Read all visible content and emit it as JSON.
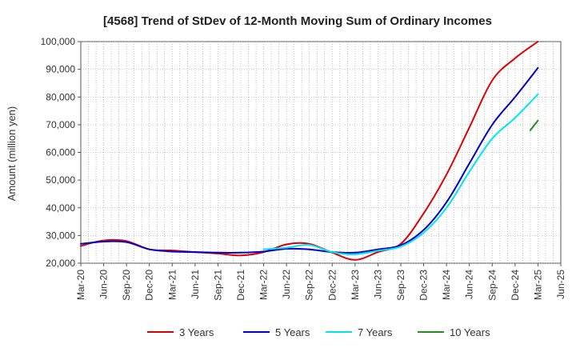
{
  "chart_data": {
    "type": "line",
    "title": "[4568]  Trend of StDev of 12-Month Moving Sum of Ordinary Incomes",
    "xlabel": "",
    "ylabel": "Amount (million yen)",
    "ylim": [
      20000,
      100000
    ],
    "ytick_values": [
      20000,
      30000,
      40000,
      50000,
      60000,
      70000,
      80000,
      90000,
      100000
    ],
    "ytick_labels": [
      "20,000",
      "30,000",
      "40,000",
      "50,000",
      "60,000",
      "70,000",
      "80,000",
      "90,000",
      "100,000"
    ],
    "x_tick_labels": [
      "Mar-20",
      "Jun-20",
      "Sep-20",
      "Dec-20",
      "Mar-21",
      "Jun-21",
      "Sep-21",
      "Dec-21",
      "Mar-22",
      "Jun-22",
      "Sep-22",
      "Dec-22",
      "Mar-23",
      "Jun-23",
      "Sep-23",
      "Dec-23",
      "Mar-24",
      "Jun-24",
      "Sep-24",
      "Dec-24",
      "Mar-25",
      "Jun-25"
    ],
    "grid": true,
    "legend_position": "bottom",
    "series": [
      {
        "name": "3 Years",
        "color": "#dd0000",
        "x": [
          "Mar-20",
          "Jun-20",
          "Sep-20",
          "Dec-20",
          "Mar-21",
          "Jun-21",
          "Sep-21",
          "Dec-21",
          "Mar-22",
          "Jun-22",
          "Sep-22",
          "Dec-22",
          "Mar-23",
          "Jun-23",
          "Sep-23",
          "Dec-23",
          "Mar-24",
          "Jun-24",
          "Sep-24",
          "Dec-24",
          "Mar-25"
        ],
        "values": [
          26200,
          28200,
          28000,
          25000,
          24600,
          24000,
          23500,
          22800,
          24000,
          26800,
          27000,
          23800,
          21200,
          24000,
          27000,
          38000,
          52000,
          69000,
          86000,
          94000,
          100000
        ]
      },
      {
        "name": "5 Years",
        "color": "#0000cc",
        "x": [
          "Mar-20",
          "Jun-20",
          "Sep-20",
          "Dec-20",
          "Mar-21",
          "Jun-21",
          "Sep-21",
          "Dec-21",
          "Mar-22",
          "Jun-22",
          "Sep-22",
          "Dec-22",
          "Mar-23",
          "Jun-23",
          "Sep-23",
          "Dec-23",
          "Mar-24",
          "Jun-24",
          "Sep-24",
          "Dec-24",
          "Mar-25"
        ],
        "values": [
          27000,
          27800,
          27600,
          25000,
          24200,
          24000,
          23800,
          23800,
          24200,
          25200,
          25000,
          24000,
          23800,
          25000,
          26500,
          32000,
          42000,
          56000,
          70000,
          80000,
          90500
        ]
      },
      {
        "name": "7 Years",
        "color": "#00e5ee",
        "x": [
          "Mar-22",
          "Jun-22",
          "Sep-22",
          "Dec-22",
          "Mar-23",
          "Jun-23",
          "Sep-23",
          "Dec-23",
          "Mar-24",
          "Jun-24",
          "Sep-24",
          "Dec-24",
          "Mar-25"
        ],
        "values": [
          25000,
          25600,
          26600,
          24000,
          23200,
          24500,
          26000,
          31000,
          40000,
          53000,
          65000,
          72500,
          81000
        ]
      },
      {
        "name": "10 Years",
        "color": "#228b22",
        "x": [
          "Feb-25",
          "Mar-25"
        ],
        "values": [
          68000,
          71500
        ]
      }
    ]
  }
}
